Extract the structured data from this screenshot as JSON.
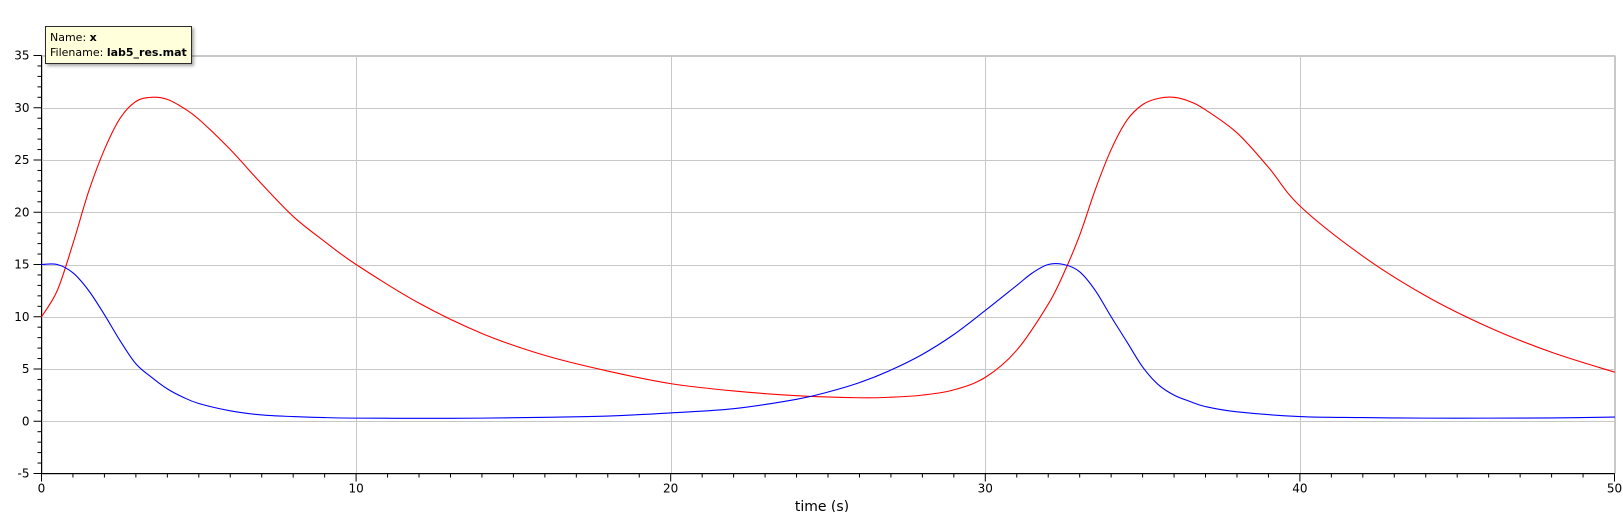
{
  "tooltip": {
    "name_label": "Name:",
    "name_value": "x",
    "filename_label": "Filename:",
    "filename_value": "lab5_res.mat"
  },
  "chart_data": {
    "type": "line",
    "xlabel": "time (s)",
    "ylabel": "",
    "xlim": [
      0,
      50
    ],
    "ylim": [
      -5,
      35
    ],
    "xticks": [
      0,
      10,
      20,
      30,
      40,
      50
    ],
    "yticks": [
      -5,
      0,
      5,
      10,
      15,
      20,
      25,
      30,
      35
    ],
    "grid": true,
    "series": [
      {
        "color": "#ff0000",
        "x": [
          0,
          0.5,
          1,
          1.5,
          2,
          2.5,
          3,
          3.5,
          4,
          4.5,
          5,
          6,
          7,
          8,
          9,
          10,
          12,
          14,
          16,
          18,
          20,
          22,
          24,
          26,
          27,
          28,
          29,
          30,
          31,
          32,
          32.5,
          33,
          33.5,
          34,
          34.5,
          35,
          35.5,
          36,
          36.5,
          37,
          38,
          39,
          40,
          42,
          44,
          46,
          48,
          50
        ],
        "y": [
          10,
          12.5,
          17,
          22,
          26,
          29,
          30.6,
          31,
          30.8,
          30,
          28.9,
          26,
          22.7,
          19.6,
          17.2,
          15,
          11.3,
          8.4,
          6.3,
          4.8,
          3.6,
          2.9,
          2.45,
          2.25,
          2.3,
          2.5,
          3,
          4.2,
          6.8,
          11.2,
          14.2,
          17.8,
          22.2,
          26,
          28.8,
          30.3,
          30.9,
          31,
          30.6,
          29.8,
          27.6,
          24.3,
          20.6,
          15.8,
          12,
          9,
          6.6,
          4.7
        ]
      },
      {
        "color": "#0000ff",
        "x": [
          0,
          0.5,
          1,
          1.5,
          2,
          2.5,
          3,
          3.5,
          4,
          4.5,
          5,
          6,
          7,
          8,
          9,
          10,
          12,
          14,
          16,
          18,
          20,
          22,
          24,
          25,
          26,
          27,
          28,
          29,
          30,
          31,
          31.5,
          32,
          32.5,
          33,
          33.5,
          34,
          34.5,
          35,
          35.5,
          36,
          36.5,
          37,
          38,
          40,
          42,
          44,
          46,
          48,
          50
        ],
        "y": [
          15,
          15,
          14.2,
          12.5,
          10.2,
          7.7,
          5.5,
          4.2,
          3.1,
          2.3,
          1.7,
          1,
          0.6,
          0.45,
          0.35,
          0.3,
          0.28,
          0.3,
          0.38,
          0.5,
          0.8,
          1.2,
          2.1,
          2.8,
          3.7,
          4.9,
          6.4,
          8.3,
          10.6,
          13,
          14.2,
          15,
          15,
          14.3,
          12.5,
          10,
          7.6,
          5.2,
          3.5,
          2.5,
          1.9,
          1.4,
          0.9,
          0.45,
          0.35,
          0.3,
          0.3,
          0.32,
          0.4
        ]
      }
    ]
  }
}
